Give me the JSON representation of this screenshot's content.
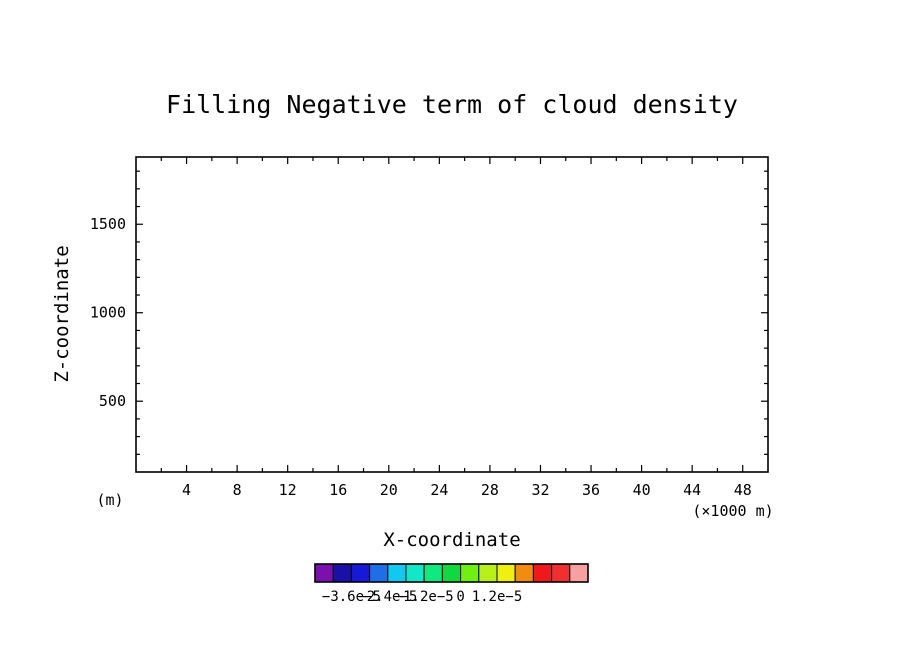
{
  "chart_data": {
    "type": "heatmap",
    "title": "Filling Negative term of cloud density",
    "xlabel": "X-coordinate",
    "ylabel": "Z-coordinate",
    "x_unit": "(×1000 m)",
    "y_unit": "(m)",
    "xlim": [
      0,
      50
    ],
    "ylim": [
      100,
      1880
    ],
    "x_ticks": [
      4,
      8,
      12,
      16,
      20,
      24,
      28,
      32,
      36,
      40,
      44,
      48
    ],
    "y_ticks": [
      500,
      1000,
      1500
    ],
    "values": [],
    "grid": false,
    "colorbar": {
      "colors": [
        "#7a10b0",
        "#1a10a8",
        "#1818d8",
        "#1e6ee8",
        "#10c8f0",
        "#10e8c8",
        "#10e880",
        "#10d840",
        "#70f010",
        "#b8f018",
        "#f0f010",
        "#f08c10",
        "#f01818",
        "#f03030",
        "#f8a0a0"
      ],
      "tick_labels": [
        "−3.6e−5",
        "−2.4e−5",
        "−1.2e−5",
        "0",
        "1.2e−5"
      ]
    }
  }
}
